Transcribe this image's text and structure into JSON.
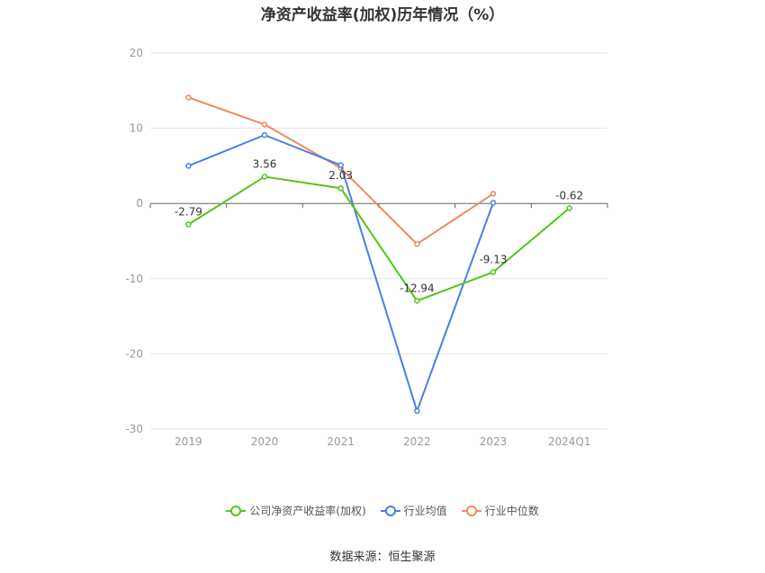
{
  "chart_data": {
    "type": "line",
    "title": "净资产收益率(加权)历年情况（%）",
    "categories": [
      "2019",
      "2020",
      "2021",
      "2022",
      "2023",
      "2024Q1"
    ],
    "ylim": [
      -30,
      20
    ],
    "yticks": [
      20,
      10,
      0,
      -10,
      -20,
      -30
    ],
    "grid": true,
    "legend_position": "bottom",
    "series": [
      {
        "name": "公司净资产收益率(加权)",
        "color": "#52c41a",
        "values": [
          -2.79,
          3.56,
          2.03,
          -12.94,
          -9.13,
          -0.62
        ],
        "labels": [
          "-2.79",
          "3.56",
          "2.03",
          "-12.94",
          "-9.13",
          "-0.62"
        ]
      },
      {
        "name": "行业均值",
        "color": "#4a7fe0",
        "values": [
          5.0,
          9.1,
          5.1,
          -27.6,
          0.1,
          null
        ]
      },
      {
        "name": "行业中位数",
        "color": "#f08a5d",
        "values": [
          14.1,
          10.5,
          4.7,
          -5.4,
          1.3,
          null
        ]
      }
    ]
  },
  "source": "数据来源：恒生聚源"
}
